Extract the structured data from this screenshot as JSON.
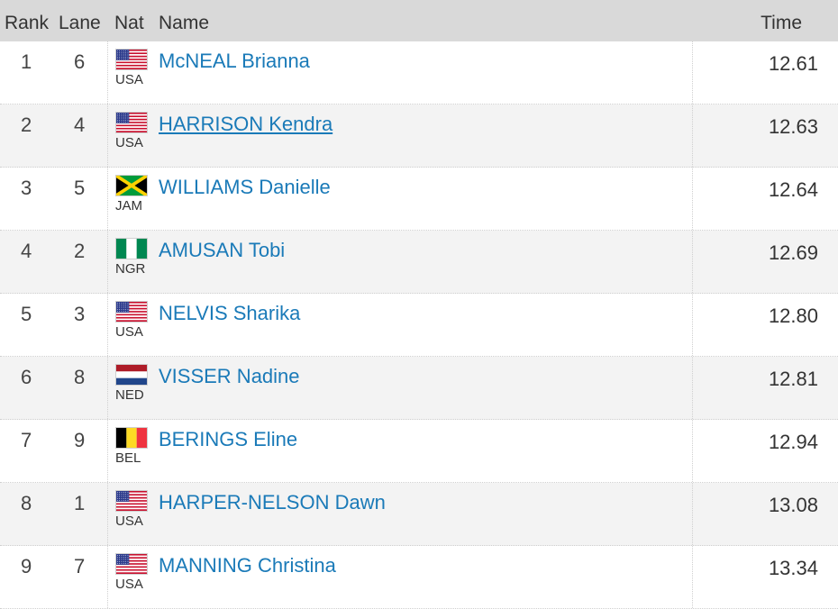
{
  "header": {
    "rank": "Rank",
    "lane": "Lane",
    "nat": "Nat",
    "name": "Name",
    "time": "Time"
  },
  "rows": [
    {
      "rank": "1",
      "lane": "6",
      "nat": "USA",
      "flag_icon": "usa-flag-icon",
      "name": "McNEAL Brianna",
      "time": "12.61"
    },
    {
      "rank": "2",
      "lane": "4",
      "nat": "USA",
      "flag_icon": "usa-flag-icon",
      "name": "HARRISON Kendra",
      "time": "12.63"
    },
    {
      "rank": "3",
      "lane": "5",
      "nat": "JAM",
      "flag_icon": "jamaica-flag-icon",
      "name": "WILLIAMS Danielle",
      "time": "12.64"
    },
    {
      "rank": "4",
      "lane": "2",
      "nat": "NGR",
      "flag_icon": "nigeria-flag-icon",
      "name": "AMUSAN Tobi",
      "time": "12.69"
    },
    {
      "rank": "5",
      "lane": "3",
      "nat": "USA",
      "flag_icon": "usa-flag-icon",
      "name": "NELVIS Sharika",
      "time": "12.80"
    },
    {
      "rank": "6",
      "lane": "8",
      "nat": "NED",
      "flag_icon": "netherlands-flag-icon",
      "name": "VISSER Nadine",
      "time": "12.81"
    },
    {
      "rank": "7",
      "lane": "9",
      "nat": "BEL",
      "flag_icon": "belgium-flag-icon",
      "name": "BERINGS Eline",
      "time": "12.94"
    },
    {
      "rank": "8",
      "lane": "1",
      "nat": "USA",
      "flag_icon": "usa-flag-icon",
      "name": "HARPER-NELSON Dawn",
      "time": "13.08"
    },
    {
      "rank": "9",
      "lane": "7",
      "nat": "USA",
      "flag_icon": "usa-flag-icon",
      "name": "MANNING Christina",
      "time": "13.34"
    }
  ],
  "colors": {
    "header_bg": "#d9d9d9",
    "alt_row_bg": "#f3f3f3",
    "link": "#1a7ab8"
  }
}
